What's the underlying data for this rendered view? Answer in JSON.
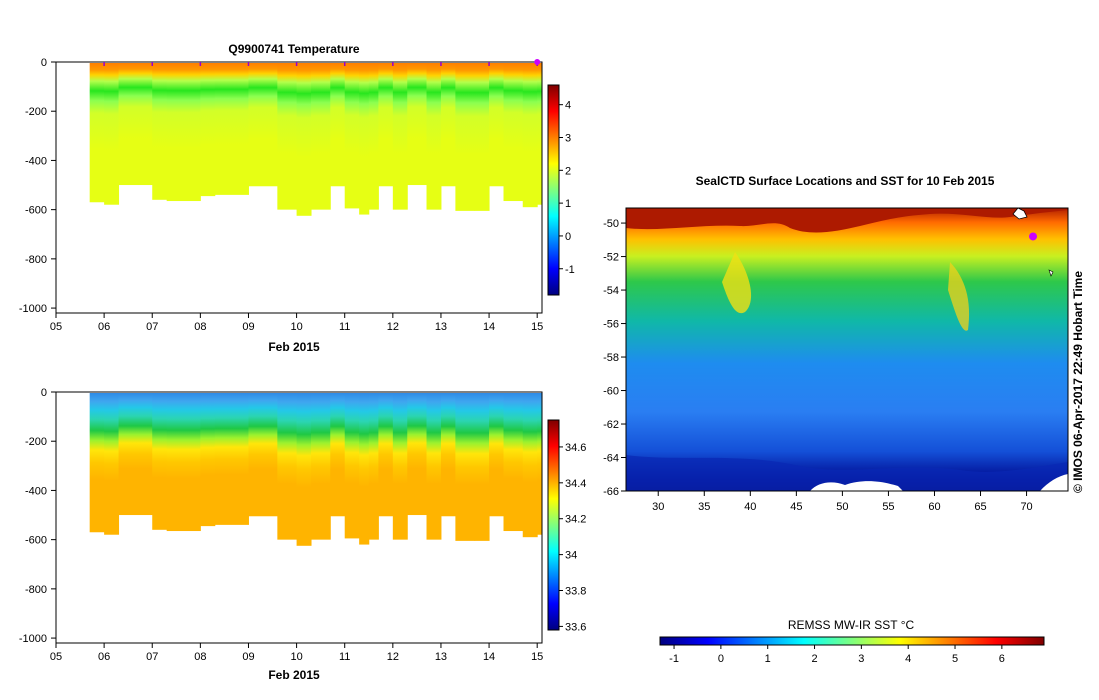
{
  "colors": {
    "jet": [
      "#00007f",
      "#0000ff",
      "#007fff",
      "#00ffff",
      "#7fff7f",
      "#ffff00",
      "#ff7f00",
      "#ff0000",
      "#7f0000"
    ],
    "profile_dot": "#cc00ff",
    "land": "#ffffff"
  },
  "chart_data": [
    {
      "type": "heatmap",
      "title": "Q9900741  Temperature",
      "xlabel": "Feb 2015",
      "ylabel": "",
      "x_ticks": [
        "05",
        "06",
        "07",
        "08",
        "09",
        "10",
        "11",
        "12",
        "13",
        "14",
        "15"
      ],
      "xlim": [
        5,
        15.1
      ],
      "y_ticks": [
        "0",
        "-200",
        "-400",
        "-600",
        "-800",
        "-1000"
      ],
      "ylim": [
        -1020,
        0
      ],
      "profile_days": [
        5.7,
        6.0,
        6.3,
        7.0,
        7.3,
        8.0,
        8.3,
        9.0,
        9.6,
        10.0,
        10.3,
        10.7,
        11.0,
        11.3,
        11.5,
        11.7,
        12.0,
        12.3,
        12.7,
        13.0,
        13.3,
        13.7,
        14.0,
        14.3,
        14.7,
        15.0
      ],
      "max_depth": [
        -570,
        -580,
        -500,
        -560,
        -565,
        -545,
        -540,
        -505,
        -600,
        -625,
        -600,
        -505,
        -595,
        -620,
        -600,
        -505,
        -600,
        -500,
        -600,
        -505,
        -605,
        -605,
        -505,
        -565,
        -590,
        -580
      ],
      "markers_x": [
        6,
        7,
        8,
        9,
        10,
        11,
        12,
        13,
        14,
        15
      ],
      "colorbar": {
        "min": -1.8,
        "max": 4.6,
        "ticks": [
          "-1",
          "0",
          "1",
          "2",
          "3",
          "4"
        ]
      }
    },
    {
      "type": "heatmap",
      "title": "",
      "xlabel": "Feb 2015",
      "ylabel": "",
      "x_ticks": [
        "05",
        "06",
        "07",
        "08",
        "09",
        "10",
        "11",
        "12",
        "13",
        "14",
        "15"
      ],
      "xlim": [
        5,
        15.1
      ],
      "y_ticks": [
        "0",
        "-200",
        "-400",
        "-600",
        "-800",
        "-1000"
      ],
      "ylim": [
        -1020,
        0
      ],
      "colorbar": {
        "min": 33.58,
        "max": 34.75,
        "ticks": [
          "33.6",
          "33.8",
          "34",
          "34.2",
          "34.4",
          "34.6"
        ]
      }
    },
    {
      "type": "heatmap",
      "title": "SealCTD Surface Locations and SST for 10 Feb 2015",
      "xlabel": "",
      "ylabel": "",
      "x_ticks": [
        "30",
        "35",
        "40",
        "45",
        "50",
        "55",
        "60",
        "65",
        "70"
      ],
      "xlim": [
        26.5,
        74.5
      ],
      "y_ticks": [
        "-50",
        "-52",
        "-54",
        "-56",
        "-58",
        "-60",
        "-62",
        "-64",
        "-66"
      ],
      "ylim": [
        -66,
        -49.1
      ],
      "profile_locations": [
        {
          "lon": 70.7,
          "lat": -50.8
        }
      ],
      "colorbar": {
        "label": "REMSS MW-IR SST °C",
        "min": -1.3,
        "max": 6.9,
        "ticks": [
          "-1",
          "0",
          "1",
          "2",
          "3",
          "4",
          "5",
          "6"
        ]
      }
    }
  ],
  "side_text": "© IMOS 06-Apr-2017 22:49 Hobart Time"
}
